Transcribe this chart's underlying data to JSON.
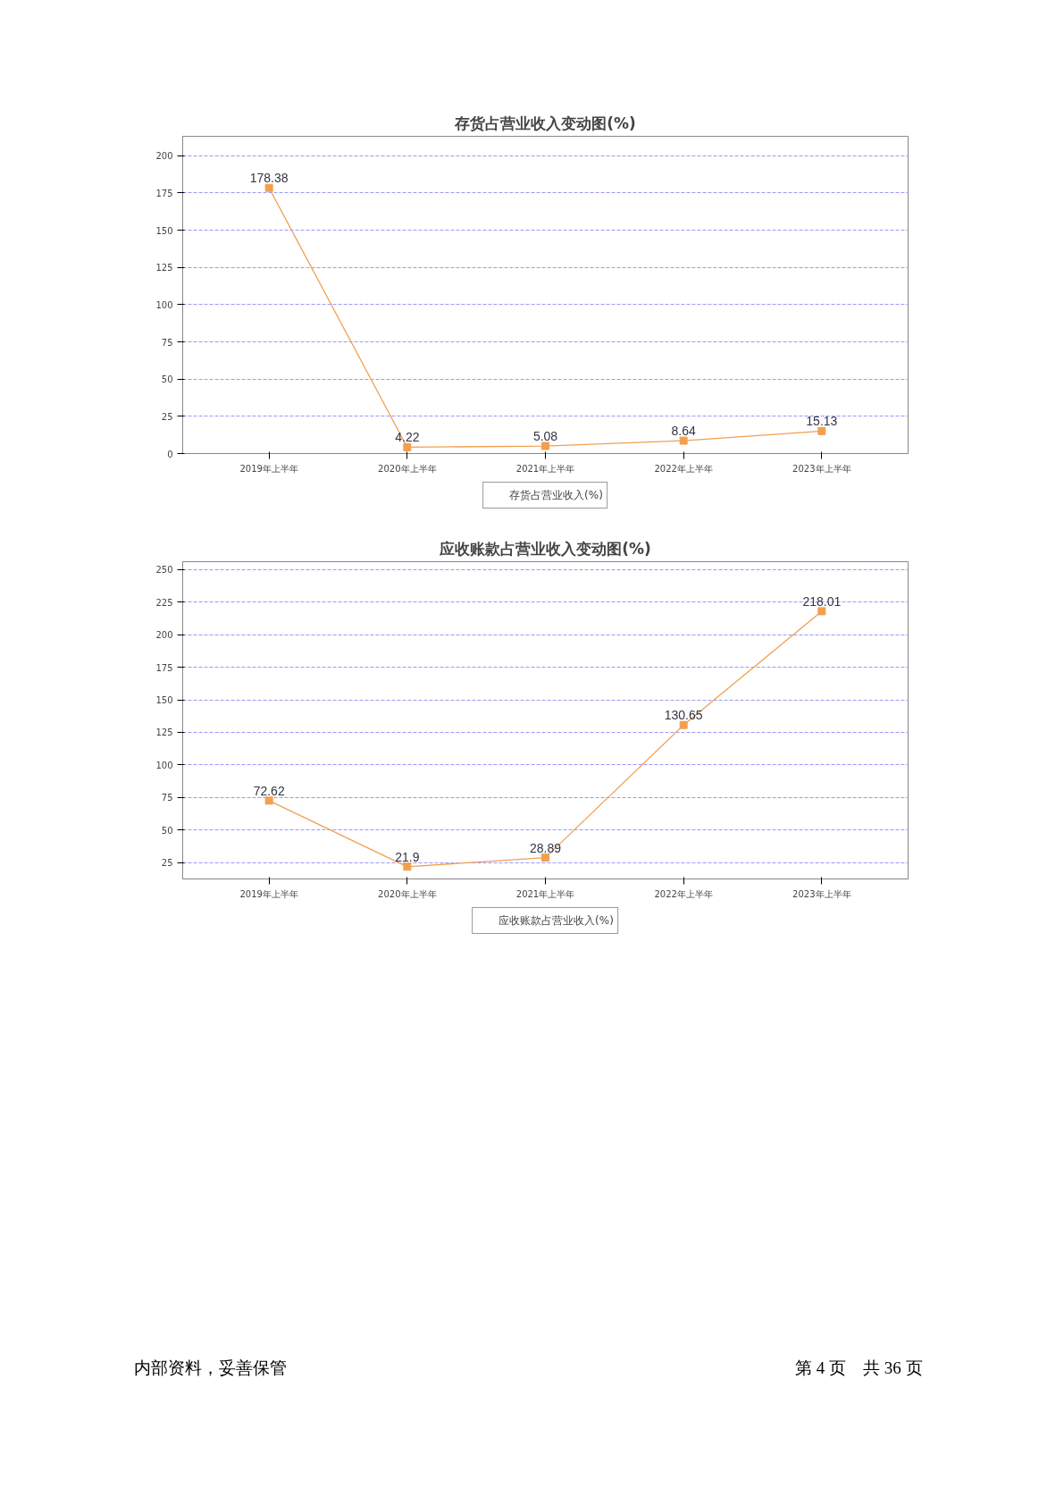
{
  "chart_data": [
    {
      "type": "line",
      "title": "存货占营业收入变动图(%)",
      "categories": [
        "2019年上半年",
        "2020年上半年",
        "2021年上半年",
        "2022年上半年",
        "2023年上半年"
      ],
      "series": [
        {
          "name": "存货占营业收入(%)",
          "color": "#f0a050",
          "values": [
            178.38,
            4.22,
            5.08,
            8.64,
            15.13
          ]
        }
      ],
      "ylim": [
        0,
        213
      ],
      "yticks": [
        0,
        25,
        50,
        75,
        100,
        125,
        150,
        175,
        200
      ],
      "grid": "y",
      "legend": "bottom",
      "marker": "square",
      "line_style": "solid",
      "data_labels": true
    },
    {
      "type": "line",
      "title": "应收账款占营业收入变动图(%)",
      "categories": [
        "2019年上半年",
        "2020年上半年",
        "2021年上半年",
        "2022年上半年",
        "2023年上半年"
      ],
      "series": [
        {
          "name": "应收账款占营业收入(%)",
          "color": "#f0a050",
          "values": [
            72.62,
            21.9,
            28.89,
            130.65,
            218.01
          ]
        }
      ],
      "ylim": [
        12.5,
        256
      ],
      "yticks": [
        25,
        50,
        75,
        100,
        125,
        150,
        175,
        200,
        225,
        250
      ],
      "grid": "y",
      "legend": "bottom",
      "marker": "square",
      "line_style": "solid",
      "data_labels": true,
      "annotations": [
        "内部资料，妥善保管",
        "第 4 页　共 36 页"
      ]
    }
  ]
}
